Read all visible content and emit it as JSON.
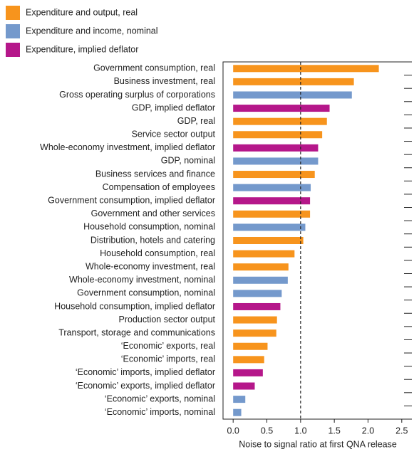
{
  "chart_data": {
    "type": "hbar",
    "categories": [
      "Government consumption, real",
      "Business investment, real",
      "Gross operating surplus of corporations",
      "GDP, implied deflator",
      "GDP, real",
      "Service sector output",
      "Whole-economy investment, implied deflator",
      "GDP, nominal",
      "Business services and finance",
      "Compensation of employees",
      "Government consumption, implied deflator",
      "Government and other services",
      "Household consumption, nominal",
      "Distribution, hotels and catering",
      "Household consumption, real",
      "Whole-economy investment, real",
      "Whole-economy investment, nominal",
      "Government consumption, nominal",
      "Household consumption, implied deflator",
      "Production sector output",
      "Transport, storage and communications",
      "‘Economic’ exports, real",
      "‘Economic’ imports, real",
      "‘Economic’ imports, implied deflator",
      "‘Economic’ exports, implied deflator",
      "‘Economic’ exports, nominal",
      "‘Economic’ imports, nominal"
    ],
    "series": [
      {
        "name": "Expenditure and output, real",
        "color": "#f7941d",
        "values": [
          2.16,
          1.79,
          null,
          null,
          1.39,
          1.32,
          null,
          null,
          1.21,
          null,
          null,
          1.14,
          null,
          1.04,
          0.91,
          0.82,
          null,
          null,
          null,
          0.65,
          0.64,
          0.51,
          0.46,
          null,
          null,
          null,
          null
        ]
      },
      {
        "name": "Expenditure and income, nominal",
        "color": "#7499cc",
        "values": [
          null,
          null,
          1.76,
          null,
          null,
          null,
          null,
          1.26,
          null,
          1.15,
          null,
          null,
          1.07,
          null,
          null,
          null,
          0.81,
          0.72,
          null,
          null,
          null,
          null,
          null,
          null,
          null,
          0.18,
          0.12
        ]
      },
      {
        "name": "Expenditure, implied deflator",
        "color": "#b5178a",
        "values": [
          null,
          null,
          null,
          1.43,
          null,
          null,
          1.26,
          null,
          null,
          null,
          1.14,
          null,
          null,
          null,
          null,
          null,
          null,
          null,
          0.7,
          null,
          null,
          null,
          null,
          0.44,
          0.32,
          null,
          null
        ]
      }
    ],
    "xlim": [
      -0.15,
      2.65
    ],
    "xticks": [
      {
        "value": 0,
        "label": "0.0"
      },
      0.5,
      {
        "value": 1,
        "label": "1.0"
      },
      1.5,
      {
        "value": 2,
        "label": "2.0"
      },
      2.5
    ],
    "xlabel": "Noise to signal ratio at first QNA release",
    "reference_line": 1
  }
}
